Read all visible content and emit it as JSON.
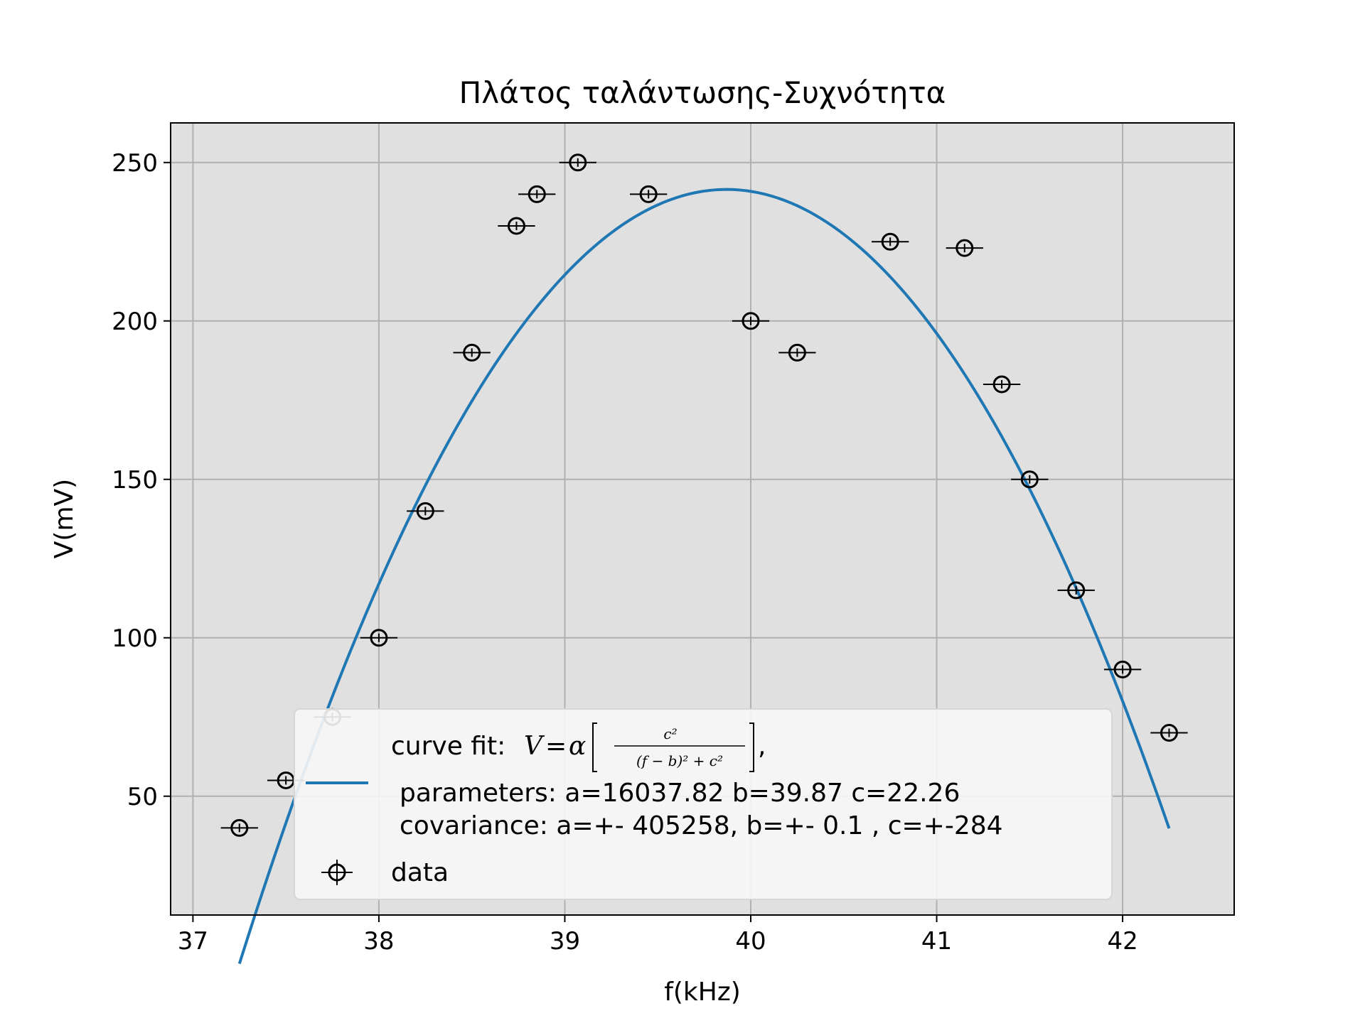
{
  "chart_data": {
    "type": "scatter",
    "title": "Πλάτος ταλάντωσης-Συχνότητα",
    "xlabel": "f(kHz)",
    "ylabel": "V(mV)",
    "xlim": [
      36.88,
      42.6
    ],
    "ylim": [
      12.5,
      262.5
    ],
    "xticks": [
      37,
      38,
      39,
      40,
      41,
      42
    ],
    "yticks": [
      50,
      100,
      150,
      200,
      250
    ],
    "grid": true,
    "legend_position": "lower center",
    "series": [
      {
        "name": "data",
        "type": "errorbar",
        "x_error": 0.1,
        "points": [
          {
            "x": 37.25,
            "y": 40
          },
          {
            "x": 37.5,
            "y": 55
          },
          {
            "x": 37.75,
            "y": 75
          },
          {
            "x": 38.0,
            "y": 100
          },
          {
            "x": 38.25,
            "y": 140
          },
          {
            "x": 38.5,
            "y": 190
          },
          {
            "x": 38.74,
            "y": 230
          },
          {
            "x": 38.85,
            "y": 240
          },
          {
            "x": 39.07,
            "y": 250
          },
          {
            "x": 39.45,
            "y": 240
          },
          {
            "x": 40.0,
            "y": 200
          },
          {
            "x": 40.25,
            "y": 190
          },
          {
            "x": 40.75,
            "y": 225
          },
          {
            "x": 41.15,
            "y": 223
          },
          {
            "x": 41.35,
            "y": 180
          },
          {
            "x": 41.5,
            "y": 150
          },
          {
            "x": 41.75,
            "y": 115
          },
          {
            "x": 42.0,
            "y": 90
          },
          {
            "x": 42.25,
            "y": 70
          }
        ]
      },
      {
        "name": "curve fit",
        "type": "line",
        "color": "#1f77b4",
        "x_range": [
          37.25,
          42.25
        ],
        "parameters": {
          "a": 16037.82,
          "b": 39.87,
          "c": 22.26
        }
      }
    ],
    "legend": {
      "fit_prefix": "curve fit:",
      "fit_parameters": "parameters: a=16037.82 b=39.87 c=22.26",
      "fit_covariance": "covariance: a=+- 405258, b=+- 0.1 , c=+-284",
      "data_label": "data"
    },
    "colors": {
      "plot_background": "#e0e0e0",
      "grid": "#b0b0b0",
      "fit_line": "#1f77b4",
      "markers": "#000000"
    }
  }
}
